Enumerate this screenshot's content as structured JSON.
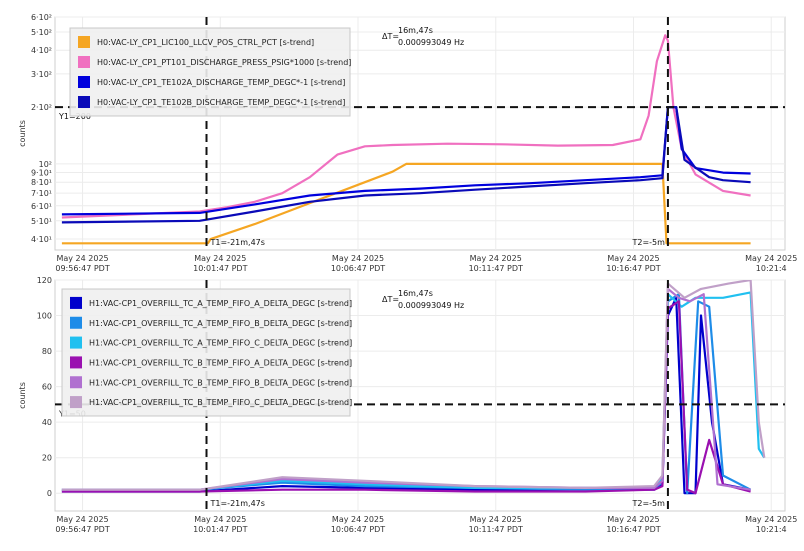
{
  "chart_data": [
    {
      "type": "line",
      "ylabel": "counts",
      "yscale": "log",
      "ylim": [
        35,
        600
      ],
      "y_tick_labels": [
        {
          "v": 40,
          "label": "4·10¹"
        },
        {
          "v": 50,
          "label": "5·10¹"
        },
        {
          "v": 60,
          "label": "6·10¹"
        },
        {
          "v": 70,
          "label": "7·10¹"
        },
        {
          "v": 80,
          "label": "8·10¹"
        },
        {
          "v": 90,
          "label": "9·10¹"
        },
        {
          "v": 100,
          "label": "10²"
        },
        {
          "v": 200,
          "label": "2·10²"
        },
        {
          "v": 300,
          "label": "3·10²"
        },
        {
          "v": 400,
          "label": "4·10²"
        },
        {
          "v": 500,
          "label": "5·10²"
        },
        {
          "v": 600,
          "label": "6·10²"
        }
      ],
      "x_tick_labels": [
        {
          "m": -0.25,
          "l1": "May 24 2025",
          "l2": "09:56:47 PDT"
        },
        {
          "m": 4.75,
          "l1": "May 24 2025",
          "l2": "10:01:47 PDT"
        },
        {
          "m": 9.75,
          "l1": "May 24 2025",
          "l2": "10:06:47 PDT"
        },
        {
          "m": 14.75,
          "l1": "May 24 2025",
          "l2": "10:11:47 PDT"
        },
        {
          "m": 19.75,
          "l1": "May 24 2025",
          "l2": "10:16:47 PDT"
        },
        {
          "m": 24.75,
          "l1": "May 24 2025",
          "l2": "10:21:4"
        }
      ],
      "xlim": [
        -1.25,
        25.25
      ],
      "cursor_y": {
        "value": 200,
        "label": "Y1=200"
      },
      "cursors_x": [
        {
          "m": 4.25,
          "label": "T1=-21m,47s"
        },
        {
          "m": 21.0,
          "label": "T2=-5m"
        }
      ],
      "delta": {
        "prefix": "ΔT=",
        "line1": "16m,47s",
        "line2": "0.000993049 Hz"
      },
      "legend_position": "top-left",
      "series": [
        {
          "name": "H0:VAC-LY_CP1_LIC100_LLCV_POS_CTRL_PCT [s-trend]",
          "color": "#f5a623",
          "points": [
            [
              -1.0,
              38
            ],
            [
              4.3,
              38
            ],
            [
              4.4,
              40
            ],
            [
              6,
              48
            ],
            [
              8,
              62
            ],
            [
              10,
              80
            ],
            [
              11,
              91
            ],
            [
              11.5,
              100
            ],
            [
              16,
              100
            ],
            [
              20.8,
              100
            ],
            [
              20.95,
              38
            ],
            [
              24,
              38
            ]
          ]
        },
        {
          "name": "H0:VAC-LY_CP1_PT101_DISCHARGE_PRESS_PSIG*1000 [s-trend]",
          "color": "#f070c0",
          "points": [
            [
              -1.0,
              52
            ],
            [
              4.0,
              56
            ],
            [
              5,
              59
            ],
            [
              6,
              63
            ],
            [
              7,
              70
            ],
            [
              8,
              85
            ],
            [
              9,
              112
            ],
            [
              10,
              124
            ],
            [
              11,
              126
            ],
            [
              13,
              128
            ],
            [
              15,
              127
            ],
            [
              17,
              125
            ],
            [
              19,
              126
            ],
            [
              20.0,
              135
            ],
            [
              20.3,
              180
            ],
            [
              20.6,
              350
            ],
            [
              20.9,
              480
            ],
            [
              21.0,
              450
            ],
            [
              21.2,
              200
            ],
            [
              21.5,
              120
            ],
            [
              22,
              88
            ],
            [
              23,
              72
            ],
            [
              24,
              68
            ]
          ]
        },
        {
          "name": "H0:VAC-LY_CP1_TE102A_DISCHARGE_TEMP_DEGC*-1 [s-trend]",
          "color": "#0000dd",
          "points": [
            [
              -1.0,
              54
            ],
            [
              4.0,
              55
            ],
            [
              6,
              61
            ],
            [
              8,
              68
            ],
            [
              10,
              72
            ],
            [
              12,
              74
            ],
            [
              14,
              77
            ],
            [
              16,
              79
            ],
            [
              18,
              82
            ],
            [
              20,
              85
            ],
            [
              20.8,
              87
            ],
            [
              21.0,
              200
            ],
            [
              21.3,
              200
            ],
            [
              21.5,
              120
            ],
            [
              22,
              95
            ],
            [
              23,
              90
            ],
            [
              24,
              89
            ]
          ]
        },
        {
          "name": "H0:VAC-LY_CP1_TE102B_DISCHARGE_TEMP_DEGC*-1 [s-trend]",
          "color": "#0a0ab8",
          "points": [
            [
              -1.0,
              49
            ],
            [
              4.0,
              50
            ],
            [
              6,
              56
            ],
            [
              8,
              63
            ],
            [
              10,
              68
            ],
            [
              12,
              70
            ],
            [
              14,
              73
            ],
            [
              16,
              76
            ],
            [
              18,
              79
            ],
            [
              20,
              82
            ],
            [
              20.8,
              84
            ],
            [
              21.0,
              200
            ],
            [
              21.3,
              200
            ],
            [
              21.6,
              105
            ],
            [
              22.5,
              85
            ],
            [
              23,
              82
            ],
            [
              24,
              80
            ]
          ]
        }
      ]
    },
    {
      "type": "line",
      "ylabel": "counts",
      "yscale": "linear",
      "ylim": [
        -10,
        120
      ],
      "y_tick_labels": [
        {
          "v": 0,
          "label": "0"
        },
        {
          "v": 20,
          "label": "20"
        },
        {
          "v": 40,
          "label": "40"
        },
        {
          "v": 60,
          "label": "60"
        },
        {
          "v": 80,
          "label": "80"
        },
        {
          "v": 100,
          "label": "100"
        },
        {
          "v": 120,
          "label": "120"
        }
      ],
      "x_tick_labels": [
        {
          "m": -0.25,
          "l1": "May 24 2025",
          "l2": "09:56:47 PDT"
        },
        {
          "m": 4.75,
          "l1": "May 24 2025",
          "l2": "10:01:47 PDT"
        },
        {
          "m": 9.75,
          "l1": "May 24 2025",
          "l2": "10:06:47 PDT"
        },
        {
          "m": 14.75,
          "l1": "May 24 2025",
          "l2": "10:11:47 PDT"
        },
        {
          "m": 19.75,
          "l1": "May 24 2025",
          "l2": "10:16:47 PDT"
        },
        {
          "m": 24.75,
          "l1": "May 24 2025",
          "l2": "10:21:4"
        }
      ],
      "xlim": [
        -1.25,
        25.25
      ],
      "cursor_y": {
        "value": 50,
        "label": "Y1=50"
      },
      "cursors_x": [
        {
          "m": 4.25,
          "label": "T1=-21m,47s"
        },
        {
          "m": 21.0,
          "label": "T2=-5m"
        }
      ],
      "delta": {
        "prefix": "ΔT=",
        "line1": "16m,47s",
        "line2": "0.000993049 Hz"
      },
      "legend_position": "top-left",
      "series": [
        {
          "name": "H1:VAC-CP1_OVERFILL_TC_A_TEMP_FIFO_A_DELTA_DEGC [s-trend]",
          "color": "#0000cc",
          "points": [
            [
              -1.0,
              1
            ],
            [
              4,
              1
            ],
            [
              7,
              4
            ],
            [
              10,
              3
            ],
            [
              14,
              2
            ],
            [
              18,
              2
            ],
            [
              20.5,
              2
            ],
            [
              20.8,
              5
            ],
            [
              21.0,
              100
            ],
            [
              21.3,
              110
            ],
            [
              21.6,
              0
            ],
            [
              22.0,
              0
            ],
            [
              22.2,
              100
            ],
            [
              22.6,
              40
            ],
            [
              23,
              5
            ],
            [
              24,
              2
            ]
          ]
        },
        {
          "name": "H1:VAC-CP1_OVERFILL_TC_A_TEMP_FIFO_B_DELTA_DEGC [s-trend]",
          "color": "#1e8ce8",
          "points": [
            [
              -1.0,
              2
            ],
            [
              4,
              2
            ],
            [
              7,
              6
            ],
            [
              10,
              4
            ],
            [
              14,
              3
            ],
            [
              18,
              2
            ],
            [
              20.5,
              3
            ],
            [
              20.8,
              6
            ],
            [
              21.0,
              108
            ],
            [
              21.4,
              112
            ],
            [
              21.7,
              0
            ],
            [
              22.1,
              108
            ],
            [
              22.5,
              105
            ],
            [
              23,
              10
            ],
            [
              24,
              2
            ]
          ]
        },
        {
          "name": "H1:VAC-CP1_OVERFILL_TC_A_TEMP_FIFO_C_DELTA_DEGC [s-trend]",
          "color": "#20c0f0",
          "points": [
            [
              -1.0,
              2
            ],
            [
              4,
              2
            ],
            [
              7,
              7
            ],
            [
              10,
              5
            ],
            [
              14,
              3
            ],
            [
              18,
              3
            ],
            [
              20.5,
              3
            ],
            [
              20.8,
              8
            ],
            [
              21.0,
              112
            ],
            [
              21.5,
              105
            ],
            [
              22,
              110
            ],
            [
              23,
              110
            ],
            [
              24,
              113
            ],
            [
              24.3,
              25
            ],
            [
              24.5,
              20
            ]
          ]
        },
        {
          "name": "H1:VAC-CP1_OVERFILL_TC_B_TEMP_FIFO_A_DELTA_DEGC [s-trend]",
          "color": "#9a10b0",
          "points": [
            [
              -1.0,
              1
            ],
            [
              4,
              1
            ],
            [
              7,
              2
            ],
            [
              10,
              2
            ],
            [
              14,
              1
            ],
            [
              18,
              1
            ],
            [
              20.5,
              2
            ],
            [
              20.8,
              4
            ],
            [
              21.0,
              104
            ],
            [
              21.4,
              108
            ],
            [
              21.7,
              2
            ],
            [
              22.0,
              0
            ],
            [
              22.5,
              30
            ],
            [
              23,
              5
            ],
            [
              24,
              1
            ]
          ]
        },
        {
          "name": "H1:VAC-CP1_OVERFILL_TC_B_TEMP_FIFO_B_DELTA_DEGC [s-trend]",
          "color": "#b070d0",
          "points": [
            [
              -1.0,
              2
            ],
            [
              4,
              2
            ],
            [
              7,
              8
            ],
            [
              10,
              6
            ],
            [
              14,
              4
            ],
            [
              18,
              3
            ],
            [
              20.5,
              3
            ],
            [
              20.8,
              7
            ],
            [
              21.0,
              115
            ],
            [
              21.4,
              110
            ],
            [
              21.8,
              108
            ],
            [
              22.3,
              112
            ],
            [
              22.8,
              5
            ],
            [
              24,
              2
            ]
          ]
        },
        {
          "name": "H1:VAC-CP1_OVERFILL_TC_B_TEMP_FIFO_C_DELTA_DEGC [s-trend]",
          "color": "#c0a0c8",
          "points": [
            [
              -1.0,
              2
            ],
            [
              4,
              2
            ],
            [
              7,
              9
            ],
            [
              10,
              7
            ],
            [
              14,
              4
            ],
            [
              18,
              3
            ],
            [
              20.5,
              4
            ],
            [
              20.8,
              10
            ],
            [
              21.0,
              118
            ],
            [
              21.6,
              110
            ],
            [
              22.2,
              115
            ],
            [
              23.2,
              118
            ],
            [
              24,
              120
            ],
            [
              24.3,
              40
            ],
            [
              24.5,
              20
            ]
          ]
        }
      ]
    }
  ]
}
